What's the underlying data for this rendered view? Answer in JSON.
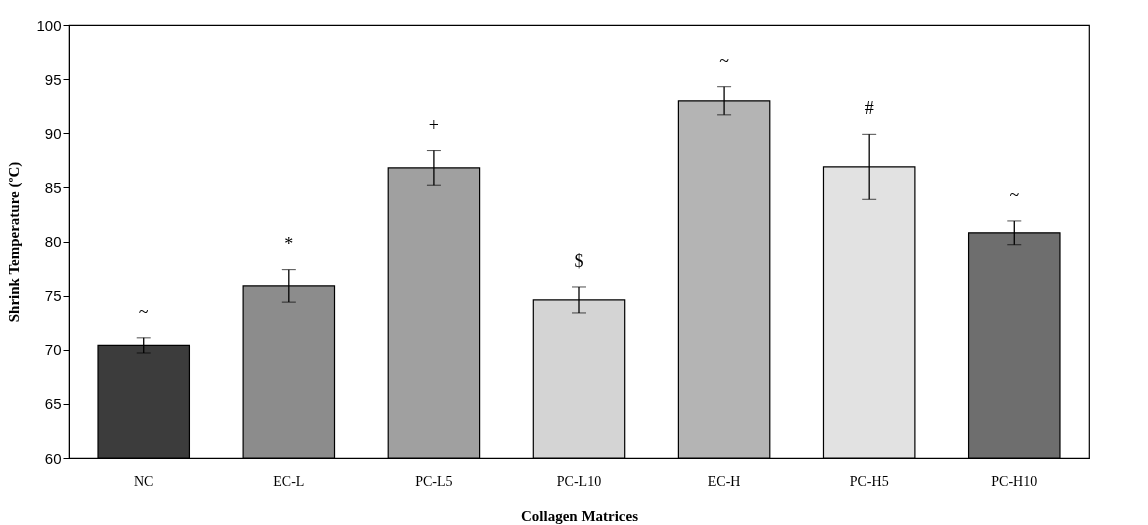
{
  "chart_data": {
    "type": "bar",
    "xlabel": "Collagen Matrices",
    "ylabel": "Shrink Temperature (ºC)",
    "categories": [
      "NC",
      "EC-L",
      "PC-L5",
      "PC-L10",
      "EC-H",
      "PC-H5",
      "PC-H10"
    ],
    "values": [
      70.4,
      75.9,
      86.8,
      74.6,
      93.0,
      86.9,
      80.8
    ],
    "errors": [
      0.7,
      1.5,
      1.6,
      1.2,
      1.3,
      3.0,
      1.1
    ],
    "colors": [
      "#3c3c3c",
      "#8c8c8c",
      "#a0a0a0",
      "#d4d4d4",
      "#b4b4b4",
      "#e2e2e2",
      "#6e6e6e"
    ],
    "ylim": [
      60,
      100
    ],
    "yticks": [
      60,
      65,
      70,
      75,
      80,
      85,
      90,
      95,
      100
    ],
    "grid": false,
    "annotations": [
      "~",
      "*",
      "+",
      "$",
      "~",
      "#",
      "~"
    ]
  }
}
